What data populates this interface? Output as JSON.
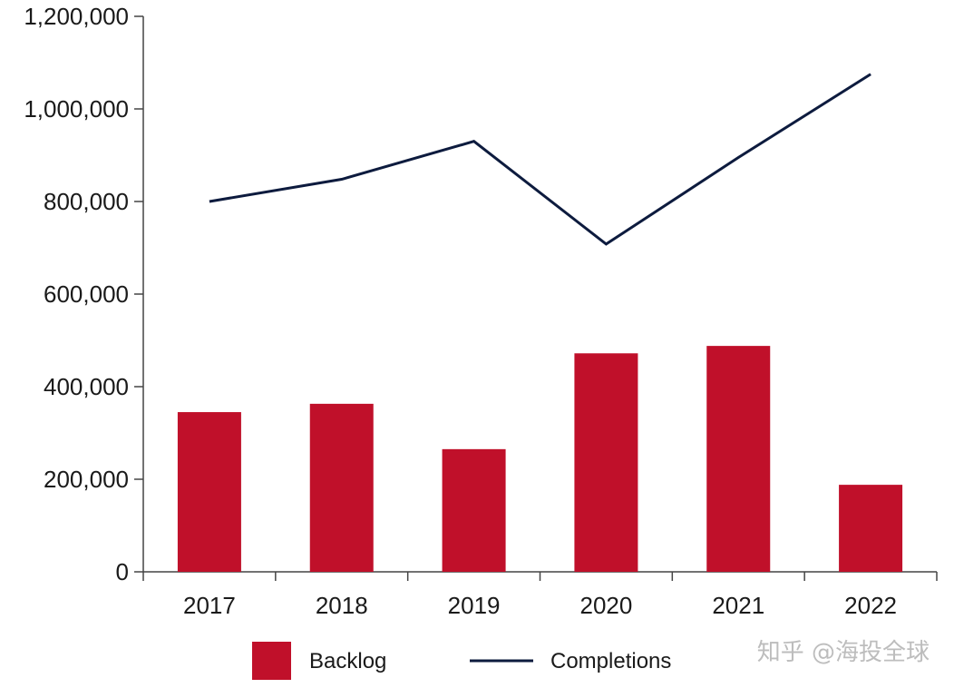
{
  "chart_data": {
    "type": "bar",
    "categories": [
      "2017",
      "2018",
      "2019",
      "2020",
      "2021",
      "2022"
    ],
    "series": [
      {
        "name": "Backlog",
        "type": "bar",
        "color": "#c0102a",
        "values": [
          345000,
          363000,
          265000,
          472000,
          488000,
          188000
        ]
      },
      {
        "name": "Completions",
        "type": "line",
        "color": "#0d1b3e",
        "values": [
          800000,
          848000,
          930000,
          708000,
          895000,
          1075000
        ]
      }
    ],
    "ylim": [
      0,
      1200000
    ],
    "yticks": [
      0,
      200000,
      400000,
      600000,
      800000,
      1000000,
      1200000
    ],
    "ytick_labels": [
      "0",
      "200,000",
      "400,000",
      "600,000",
      "800,000",
      "1,000,000",
      "1,200,000"
    ],
    "grid": false,
    "legend_position": "bottom"
  },
  "watermark": "知乎 @海投全球"
}
